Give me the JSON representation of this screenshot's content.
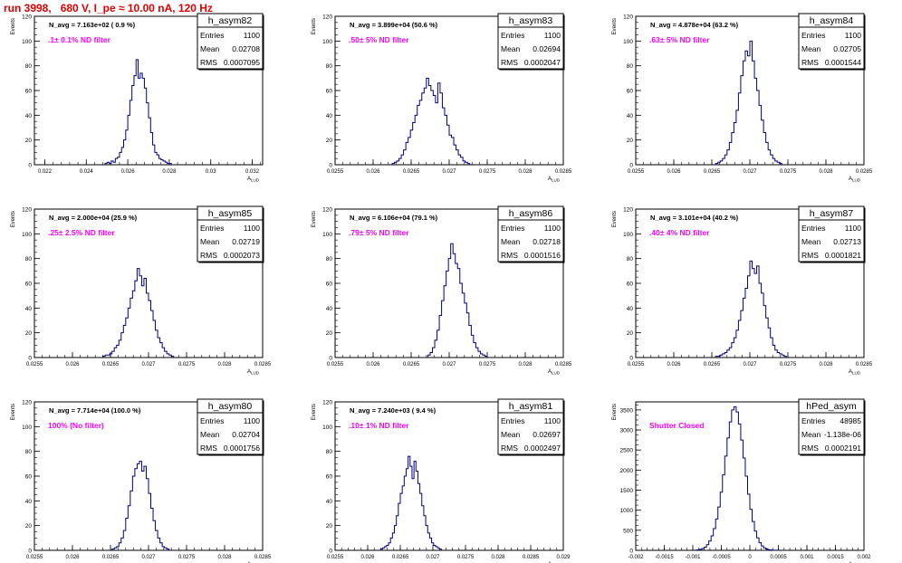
{
  "page_title": "run 3998,   680 V, I_pe ≈ 10.00 nA, 120 Hz",
  "stats_labels": {
    "entries": "Entries",
    "mean": "Mean",
    "rms": "RMS"
  },
  "axis_label_y": "Events",
  "axis_label_x": "A",
  "axis_label_x_sub": "LUD",
  "colors": {
    "histogram": "#000080",
    "filter_label": "#ff00ff",
    "title": "#e00000",
    "text": "#000000"
  },
  "chart_data": [
    {
      "type": "bar",
      "name": "h_asym82",
      "navg": "N_avg = 7.163e+02 ( 0.9 %)",
      "filter": ".1± 0.1% ND filter",
      "entries": "1100",
      "mean": "0.02708",
      "rms": "0.0007095",
      "xlim": [
        0.0215,
        0.0325
      ],
      "ylim": [
        0,
        120
      ],
      "xticks": [
        "0.022",
        "0.024",
        "0.026",
        "0.028",
        "0.03",
        "0.032"
      ],
      "xtick_values": [
        0.022,
        0.024,
        0.026,
        0.028,
        0.03,
        0.032
      ],
      "yticks": [
        "0",
        "20",
        "40",
        "60",
        "80",
        "100",
        "120"
      ],
      "ytick_values": [
        0,
        20,
        40,
        60,
        80,
        100,
        120
      ],
      "bin_start": 0.0249,
      "bin_width": 0.0001,
      "values": [
        1,
        2,
        1,
        3,
        2,
        5,
        6,
        10,
        14,
        20,
        28,
        40,
        52,
        64,
        72,
        85,
        70,
        74,
        70,
        62,
        50,
        38,
        26,
        16,
        10,
        8,
        5,
        4,
        3,
        2,
        1,
        1
      ]
    },
    {
      "type": "bar",
      "name": "h_asym83",
      "navg": "N_avg = 3.899e+04 (50.6 %)",
      "filter": ".50± 5% ND filter",
      "entries": "1100",
      "mean": "0.02694",
      "rms": "0.0002047",
      "xlim": [
        0.0255,
        0.0285
      ],
      "ylim": [
        0,
        120
      ],
      "xticks": [
        "0.0255",
        "0.026",
        "0.0265",
        "0.027",
        "0.0275",
        "0.028",
        "0.0285"
      ],
      "xtick_values": [
        0.0255,
        0.026,
        0.0265,
        0.027,
        0.0275,
        0.028,
        0.0285
      ],
      "yticks": [
        "0",
        "20",
        "40",
        "60",
        "80",
        "100",
        "120"
      ],
      "ytick_values": [
        0,
        20,
        40,
        60,
        80,
        100,
        120
      ],
      "bin_start": 0.02625,
      "bin_width": 3e-05,
      "values": [
        1,
        2,
        3,
        5,
        8,
        12,
        18,
        22,
        28,
        34,
        40,
        48,
        52,
        58,
        62,
        70,
        64,
        60,
        56,
        50,
        66,
        58,
        46,
        40,
        32,
        24,
        22,
        16,
        12,
        8,
        6,
        3,
        2,
        1
      ]
    },
    {
      "type": "bar",
      "name": "h_asym84",
      "navg": "N_avg = 4.878e+04 (63.2 %)",
      "filter": ".63± 5% ND filter",
      "entries": "1100",
      "mean": "0.02705",
      "rms": "0.0001544",
      "xlim": [
        0.0255,
        0.0285
      ],
      "ylim": [
        0,
        120
      ],
      "xticks": [
        "0.0255",
        "0.026",
        "0.0265",
        "0.027",
        "0.0275",
        "0.028",
        "0.0285"
      ],
      "xtick_values": [
        0.0255,
        0.026,
        0.0265,
        0.027,
        0.0275,
        0.028,
        0.0285
      ],
      "yticks": [
        "0",
        "20",
        "40",
        "60",
        "80",
        "100",
        "120"
      ],
      "ytick_values": [
        0,
        20,
        40,
        60,
        80,
        100,
        120
      ],
      "bin_start": 0.02655,
      "bin_width": 3e-05,
      "values": [
        1,
        2,
        3,
        5,
        8,
        12,
        18,
        26,
        34,
        44,
        58,
        72,
        84,
        92,
        88,
        100,
        84,
        70,
        60,
        48,
        36,
        26,
        18,
        12,
        8,
        5,
        3,
        2,
        1
      ]
    },
    {
      "type": "bar",
      "name": "h_asym85",
      "navg": "N_avg = 2.000e+04 (25.9 %)",
      "filter": ".25± 2.5% ND filter",
      "entries": "1100",
      "mean": "0.02719",
      "rms": "0.0002073",
      "xlim": [
        0.0255,
        0.0285
      ],
      "ylim": [
        0,
        120
      ],
      "xticks": [
        "0.0255",
        "0.026",
        "0.0265",
        "0.027",
        "0.0275",
        "0.028",
        "0.0285"
      ],
      "xtick_values": [
        0.0255,
        0.026,
        0.0265,
        0.027,
        0.0275,
        0.028,
        0.0285
      ],
      "yticks": [
        "0",
        "20",
        "40",
        "60",
        "80",
        "100",
        "120"
      ],
      "ytick_values": [
        0,
        20,
        40,
        60,
        80,
        100,
        120
      ],
      "bin_start": 0.0264,
      "bin_width": 3e-05,
      "values": [
        1,
        2,
        2,
        3,
        5,
        8,
        10,
        14,
        20,
        26,
        32,
        40,
        48,
        54,
        62,
        72,
        66,
        58,
        64,
        52,
        46,
        38,
        30,
        22,
        16,
        12,
        8,
        5,
        3,
        2,
        1
      ]
    },
    {
      "type": "bar",
      "name": "h_asym86",
      "navg": "N_avg = 6.106e+04 (79.1 %)",
      "filter": ".79± 5% ND filter",
      "entries": "1100",
      "mean": "0.02718",
      "rms": "0.0001516",
      "xlim": [
        0.0255,
        0.0285
      ],
      "ylim": [
        0,
        120
      ],
      "xticks": [
        "0.0255",
        "0.026",
        "0.0265",
        "0.027",
        "0.0275",
        "0.028",
        "0.0285"
      ],
      "xtick_values": [
        0.0255,
        0.026,
        0.0265,
        0.027,
        0.0275,
        0.028,
        0.0285
      ],
      "yticks": [
        "0",
        "20",
        "40",
        "60",
        "80",
        "100",
        "120"
      ],
      "ytick_values": [
        0,
        20,
        40,
        60,
        80,
        100,
        120
      ],
      "bin_start": 0.02672,
      "bin_width": 3e-05,
      "values": [
        2,
        4,
        8,
        14,
        22,
        34,
        46,
        58,
        70,
        80,
        92,
        84,
        76,
        72,
        60,
        52,
        44,
        36,
        26,
        18,
        12,
        8,
        5,
        3,
        2,
        1
      ]
    },
    {
      "type": "bar",
      "name": "h_asym87",
      "navg": "N_avg = 3.101e+04 (40.2 %)",
      "filter": ".40± 4% ND filter",
      "entries": "1100",
      "mean": "0.02713",
      "rms": "0.0001821",
      "xlim": [
        0.0255,
        0.0285
      ],
      "ylim": [
        0,
        120
      ],
      "xticks": [
        "0.0255",
        "0.026",
        "0.0265",
        "0.027",
        "0.0275",
        "0.028",
        "0.0285"
      ],
      "xtick_values": [
        0.0255,
        0.026,
        0.0265,
        0.027,
        0.0275,
        0.028,
        0.0285
      ],
      "yticks": [
        "0",
        "20",
        "40",
        "60",
        "80",
        "100",
        "120"
      ],
      "ytick_values": [
        0,
        20,
        40,
        60,
        80,
        100,
        120
      ],
      "bin_start": 0.02655,
      "bin_width": 3e-05,
      "values": [
        1,
        1,
        2,
        3,
        4,
        6,
        8,
        12,
        16,
        22,
        30,
        38,
        48,
        56,
        66,
        78,
        72,
        68,
        74,
        60,
        52,
        42,
        32,
        24,
        16,
        10,
        6,
        4,
        3,
        2,
        1
      ]
    },
    {
      "type": "bar",
      "name": "h_asym80",
      "navg": "N_avg = 7.714e+04 (100.0 %)",
      "filter": "100% (No filter)",
      "entries": "1100",
      "mean": "0.02704",
      "rms": "0.0001756",
      "xlim": [
        0.0255,
        0.0285
      ],
      "ylim": [
        0,
        120
      ],
      "xticks": [
        "0.0255",
        "0.026",
        "0.0265",
        "0.027",
        "0.0275",
        "0.028",
        "0.0285"
      ],
      "xtick_values": [
        0.0255,
        0.026,
        0.0265,
        0.027,
        0.0275,
        0.028,
        0.0285
      ],
      "yticks": [
        "0",
        "20",
        "40",
        "60",
        "80",
        "100",
        "120"
      ],
      "ytick_values": [
        0,
        20,
        40,
        60,
        80,
        100,
        120
      ],
      "bin_start": 0.02652,
      "bin_width": 3e-05,
      "values": [
        1,
        2,
        3,
        6,
        10,
        16,
        26,
        36,
        48,
        60,
        66,
        70,
        72,
        64,
        68,
        58,
        46,
        34,
        24,
        16,
        10,
        6,
        3,
        2,
        1
      ]
    },
    {
      "type": "bar",
      "name": "h_asym81",
      "navg": "N_avg = 7.240e+03 ( 9.4 %)",
      "filter": ".10± 1% ND filter",
      "entries": "1100",
      "mean": "0.02697",
      "rms": "0.0002497",
      "xlim": [
        0.0255,
        0.029
      ],
      "ylim": [
        0,
        120
      ],
      "xticks": [
        "0.0255",
        "0.026",
        "0.0265",
        "0.027",
        "0.0275",
        "0.028",
        "0.0285",
        "0.029"
      ],
      "xtick_values": [
        0.0255,
        0.026,
        0.0265,
        0.027,
        0.0275,
        0.028,
        0.0285,
        0.029
      ],
      "yticks": [
        "0",
        "20",
        "40",
        "60",
        "80",
        "100",
        "120"
      ],
      "ytick_values": [
        0,
        20,
        40,
        60,
        80,
        100,
        120
      ],
      "bin_start": 0.0262,
      "bin_width": 3e-05,
      "values": [
        1,
        2,
        3,
        4,
        6,
        10,
        14,
        20,
        28,
        38,
        46,
        52,
        60,
        66,
        76,
        68,
        58,
        72,
        64,
        54,
        46,
        36,
        28,
        20,
        14,
        10,
        6,
        4,
        3,
        2,
        1
      ]
    },
    {
      "type": "bar",
      "name": "hPed_asym",
      "navg": "",
      "filter": "Shutter Closed",
      "entries": "48985",
      "mean": "-1.138e-06",
      "rms": "0.0002191",
      "xlim": [
        -0.002,
        0.002
      ],
      "ylim": [
        0,
        3700
      ],
      "xticks": [
        "-0.002",
        "-0.0015",
        "-0.001",
        "-0.0005",
        "0",
        "0.0005",
        "0.001",
        "0.0015",
        "0.002"
      ],
      "xtick_values": [
        -0.002,
        -0.0015,
        -0.001,
        -0.0005,
        0,
        0.0005,
        0.001,
        0.0015,
        0.002
      ],
      "yticks": [
        "0",
        "500",
        "1000",
        "1500",
        "2000",
        "2500",
        "3000",
        "3500"
      ],
      "ytick_values": [
        0,
        500,
        1000,
        1500,
        2000,
        2500,
        3000,
        3500
      ],
      "bin_start": -0.00096,
      "bin_width": 4e-05,
      "values": [
        5,
        12,
        25,
        45,
        80,
        140,
        230,
        360,
        540,
        780,
        1080,
        1450,
        1880,
        2350,
        2800,
        3200,
        3500,
        3580,
        3450,
        3150,
        2750,
        2300,
        1850,
        1400,
        1020,
        720,
        480,
        310,
        190,
        110,
        60,
        30,
        15,
        8,
        4,
        2
      ]
    }
  ]
}
